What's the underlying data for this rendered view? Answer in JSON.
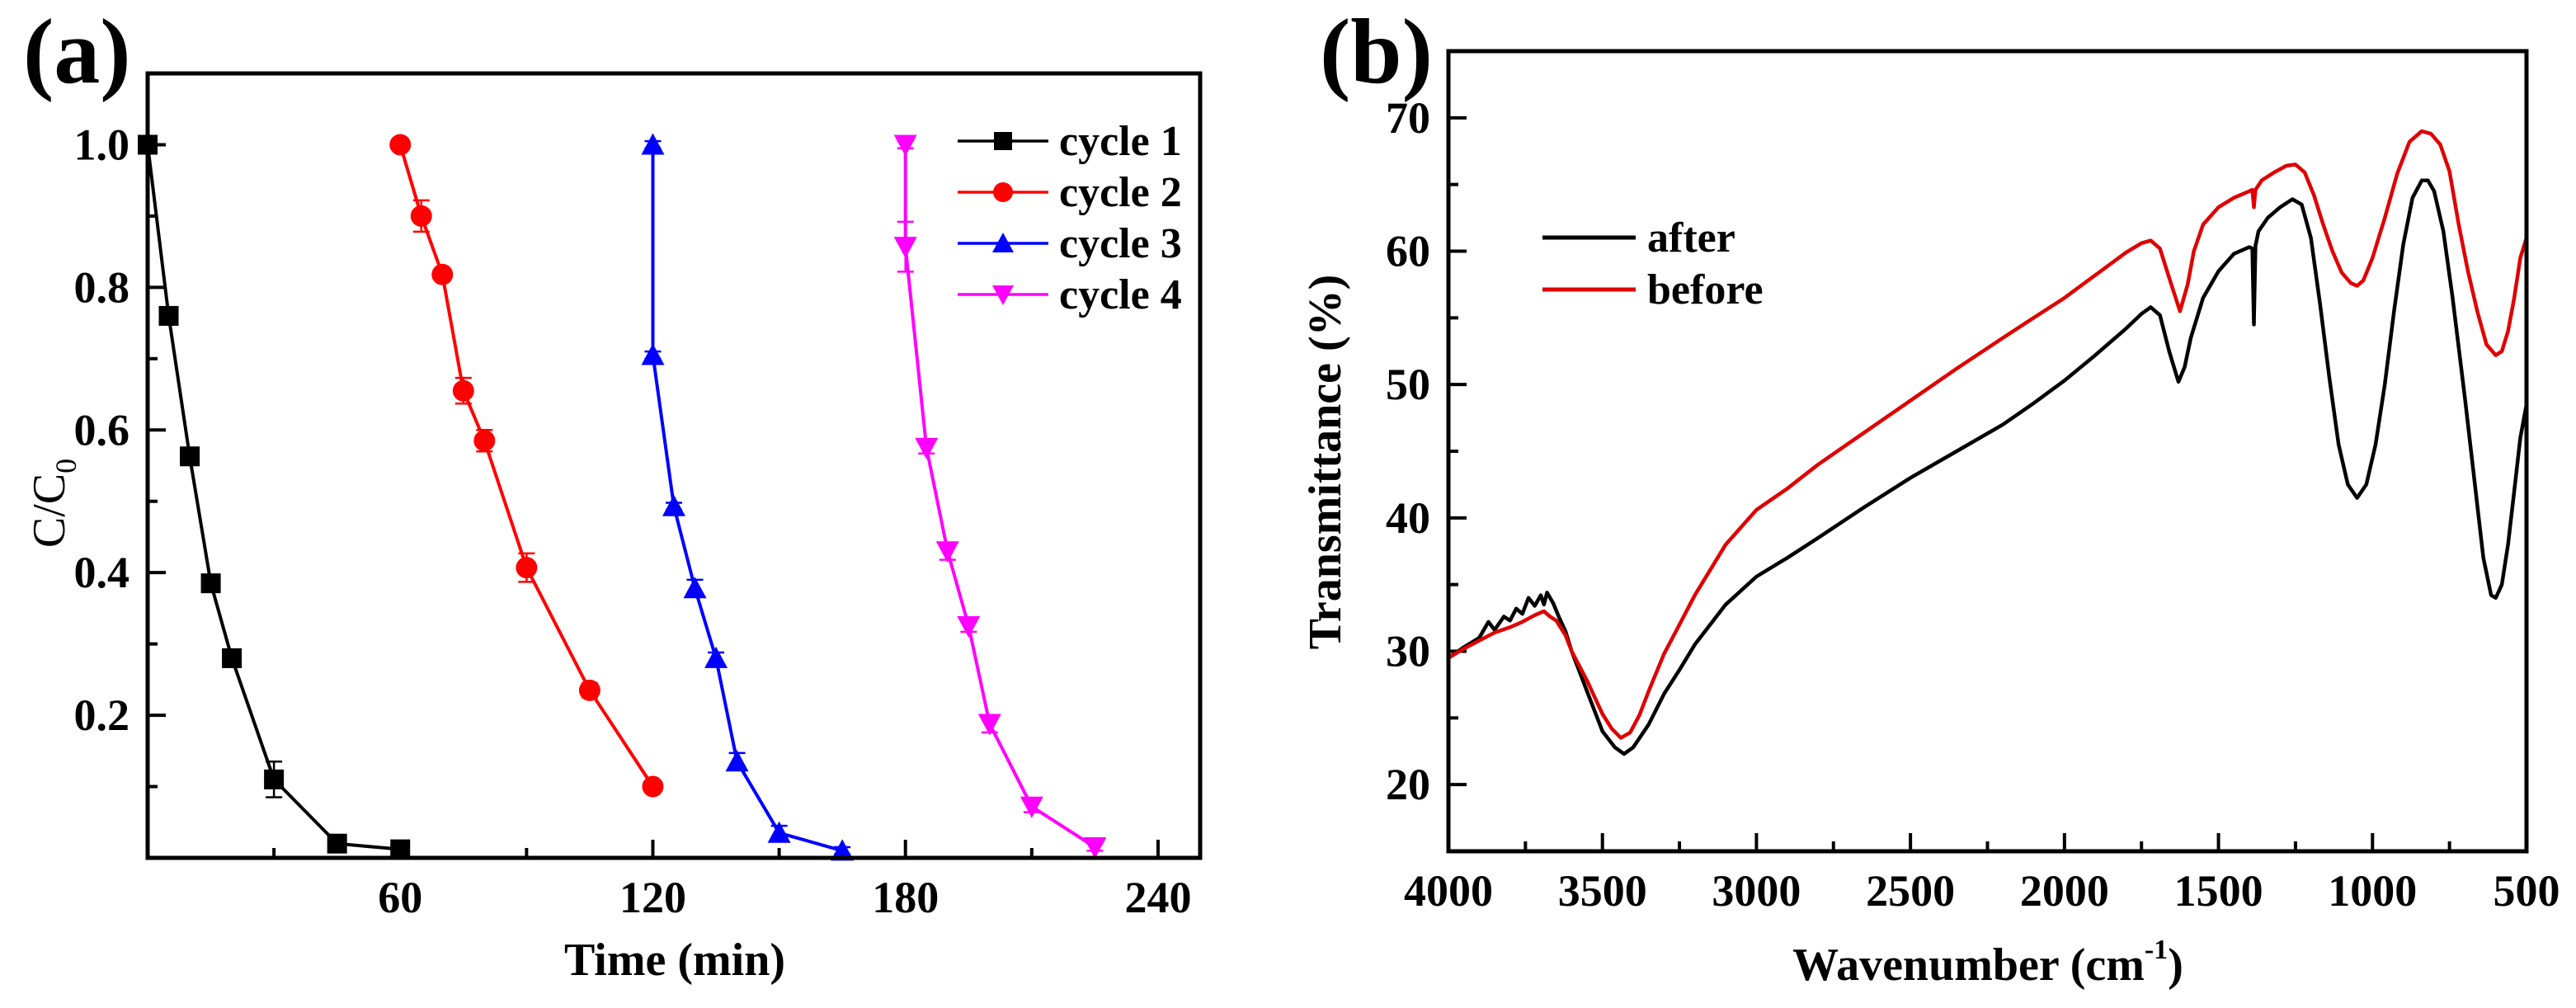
{
  "chart_data": [
    {
      "panel_label": "(a)",
      "type": "line",
      "xlabel": "Time (min)",
      "ylabel": "C/C",
      "ylabel_sub": "0",
      "xlim": [
        0,
        250
      ],
      "ylim": [
        0,
        1.1
      ],
      "xticks": [
        60,
        120,
        180,
        240
      ],
      "xtick_labels": [
        "60",
        "120",
        "180",
        "240"
      ],
      "xminor": [
        30,
        90,
        150,
        210
      ],
      "yticks": [
        0.2,
        0.4,
        0.6,
        0.8,
        1.0
      ],
      "ytick_labels": [
        "0.2",
        "0.4",
        "0.6",
        "0.8",
        "1.0"
      ],
      "yminor": [
        0.1,
        0.3,
        0.5,
        0.7,
        0.9
      ],
      "legend_position": "top-right",
      "series": [
        {
          "name": "cycle 1",
          "color": "#000000",
          "marker": "square",
          "x": [
            0,
            5,
            10,
            15,
            20,
            30,
            45,
            60
          ],
          "y": [
            1.0,
            0.76,
            0.563,
            0.385,
            0.28,
            0.11,
            0.02,
            0.012
          ],
          "err": [
            0.005,
            0.01,
            0.01,
            0.012,
            0.008,
            0.025,
            0.005,
            0.012
          ]
        },
        {
          "name": "cycle 2",
          "color": "#ff0000",
          "marker": "circle",
          "x": [
            60,
            65,
            70,
            75,
            80,
            90,
            105,
            120
          ],
          "y": [
            1.0,
            0.9,
            0.818,
            0.655,
            0.585,
            0.407,
            0.235,
            0.1
          ],
          "err": [
            0.005,
            0.022,
            0.008,
            0.018,
            0.015,
            0.02,
            0.01,
            0.005
          ]
        },
        {
          "name": "cycle 3",
          "color": "#0000ff",
          "marker": "triangle-up",
          "x": [
            120,
            120,
            125,
            130,
            135,
            140,
            150,
            165
          ],
          "y": [
            1.0,
            0.705,
            0.493,
            0.378,
            0.28,
            0.135,
            0.035,
            0.01
          ],
          "err": [
            0.005,
            0.005,
            0.005,
            0.012,
            0.008,
            0.012,
            0.01,
            0.005
          ]
        },
        {
          "name": "cycle 4",
          "color": "#ff00ff",
          "marker": "triangle-down",
          "x": [
            180,
            180,
            185,
            190,
            195,
            200,
            210,
            225
          ],
          "y": [
            1.0,
            0.857,
            0.575,
            0.43,
            0.325,
            0.188,
            0.072,
            0.015
          ],
          "err": [
            0.005,
            0.035,
            0.008,
            0.012,
            0.008,
            0.012,
            0.008,
            0.005
          ]
        }
      ]
    },
    {
      "panel_label": "(b)",
      "type": "line",
      "xlabel": "Wavenumber (cm",
      "xlabel_sup": "-1",
      "xlabel_end": ")",
      "ylabel": "Transmittance (%)",
      "xlim": [
        4000,
        500
      ],
      "ylim": [
        15,
        75
      ],
      "xticks": [
        4000,
        3500,
        3000,
        2500,
        2000,
        1500,
        1000,
        500
      ],
      "xtick_labels": [
        "4000",
        "3500",
        "3000",
        "2500",
        "2000",
        "1500",
        "1000",
        "500"
      ],
      "xminor": [
        3750,
        3250,
        2750,
        2250,
        1750,
        1250,
        750
      ],
      "yticks": [
        20,
        30,
        40,
        50,
        60,
        70
      ],
      "ytick_labels": [
        "20",
        "30",
        "40",
        "50",
        "60",
        "70"
      ],
      "yminor": [
        25,
        35,
        45,
        55,
        65
      ],
      "legend_position": "top-left",
      "series": [
        {
          "name": "after",
          "color": "#000000",
          "x": [
            4000,
            3950,
            3900,
            3870,
            3850,
            3820,
            3800,
            3780,
            3760,
            3740,
            3720,
            3700,
            3690,
            3680,
            3660,
            3640,
            3620,
            3600,
            3550,
            3500,
            3460,
            3430,
            3400,
            3350,
            3300,
            3250,
            3200,
            3100,
            3000,
            2900,
            2800,
            2650,
            2500,
            2350,
            2200,
            2100,
            2000,
            1900,
            1800,
            1750,
            1720,
            1690,
            1660,
            1630,
            1610,
            1590,
            1550,
            1500,
            1450,
            1400,
            1390,
            1385,
            1380,
            1370,
            1340,
            1300,
            1260,
            1230,
            1200,
            1170,
            1140,
            1110,
            1080,
            1050,
            1020,
            990,
            960,
            930,
            900,
            870,
            840,
            820,
            800,
            770,
            740,
            700,
            670,
            640,
            615,
            600,
            580,
            560,
            540,
            520,
            500
          ],
          "y": [
            29.5,
            30.3,
            31.0,
            32.2,
            31.6,
            32.6,
            32.3,
            33.2,
            32.8,
            34.0,
            33.4,
            34.2,
            33.5,
            34.4,
            33.6,
            32.5,
            31.5,
            30.0,
            27.0,
            24.0,
            22.8,
            22.3,
            22.8,
            24.5,
            26.8,
            28.6,
            30.5,
            33.5,
            35.6,
            37.0,
            38.5,
            40.8,
            43.0,
            45.0,
            47.0,
            48.6,
            50.3,
            52.2,
            54.2,
            55.3,
            55.8,
            55.2,
            52.5,
            50.2,
            51.3,
            53.5,
            56.5,
            58.5,
            59.8,
            60.3,
            60.2,
            54.5,
            60.4,
            61.5,
            62.5,
            63.3,
            63.9,
            63.5,
            61.0,
            56.0,
            50.5,
            45.5,
            42.5,
            41.5,
            42.5,
            45.5,
            50.0,
            55.5,
            60.5,
            64.0,
            65.3,
            65.3,
            64.5,
            61.5,
            56.5,
            49.0,
            43.0,
            37.0,
            34.2,
            34.0,
            35.0,
            38.0,
            42.0,
            46.0,
            48.5
          ]
        },
        {
          "name": "before",
          "color": "#e00000",
          "x": [
            4000,
            3950,
            3900,
            3850,
            3800,
            3760,
            3720,
            3690,
            3670,
            3650,
            3620,
            3600,
            3550,
            3500,
            3470,
            3440,
            3410,
            3380,
            3350,
            3300,
            3250,
            3200,
            3100,
            3000,
            2900,
            2800,
            2650,
            2500,
            2350,
            2200,
            2100,
            2000,
            1900,
            1800,
            1750,
            1720,
            1690,
            1660,
            1625,
            1600,
            1580,
            1550,
            1500,
            1450,
            1400,
            1390,
            1385,
            1380,
            1360,
            1320,
            1280,
            1250,
            1220,
            1190,
            1160,
            1130,
            1100,
            1070,
            1050,
            1030,
            1000,
            960,
            920,
            880,
            840,
            810,
            780,
            750,
            720,
            690,
            660,
            630,
            600,
            580,
            560,
            540,
            520,
            500
          ],
          "y": [
            29.5,
            30.2,
            30.8,
            31.4,
            31.8,
            32.2,
            32.7,
            33.0,
            32.6,
            32.3,
            31.2,
            30.0,
            27.8,
            25.3,
            24.2,
            23.5,
            23.9,
            25.2,
            27.0,
            29.8,
            32.0,
            34.2,
            38.0,
            40.6,
            42.2,
            44.0,
            46.4,
            48.8,
            51.2,
            53.5,
            55.0,
            56.5,
            58.2,
            59.9,
            60.6,
            60.8,
            60.2,
            58.0,
            55.5,
            57.5,
            60.0,
            62.0,
            63.3,
            64.0,
            64.5,
            64.6,
            63.3,
            64.6,
            65.3,
            65.9,
            66.4,
            66.5,
            65.9,
            64.2,
            62.0,
            60.0,
            58.4,
            57.6,
            57.4,
            57.8,
            59.5,
            62.5,
            65.8,
            68.2,
            69.0,
            68.8,
            68.0,
            66.0,
            62.0,
            58.5,
            55.5,
            53.0,
            52.2,
            52.5,
            54.0,
            56.5,
            59.5,
            61.0
          ]
        }
      ]
    }
  ]
}
